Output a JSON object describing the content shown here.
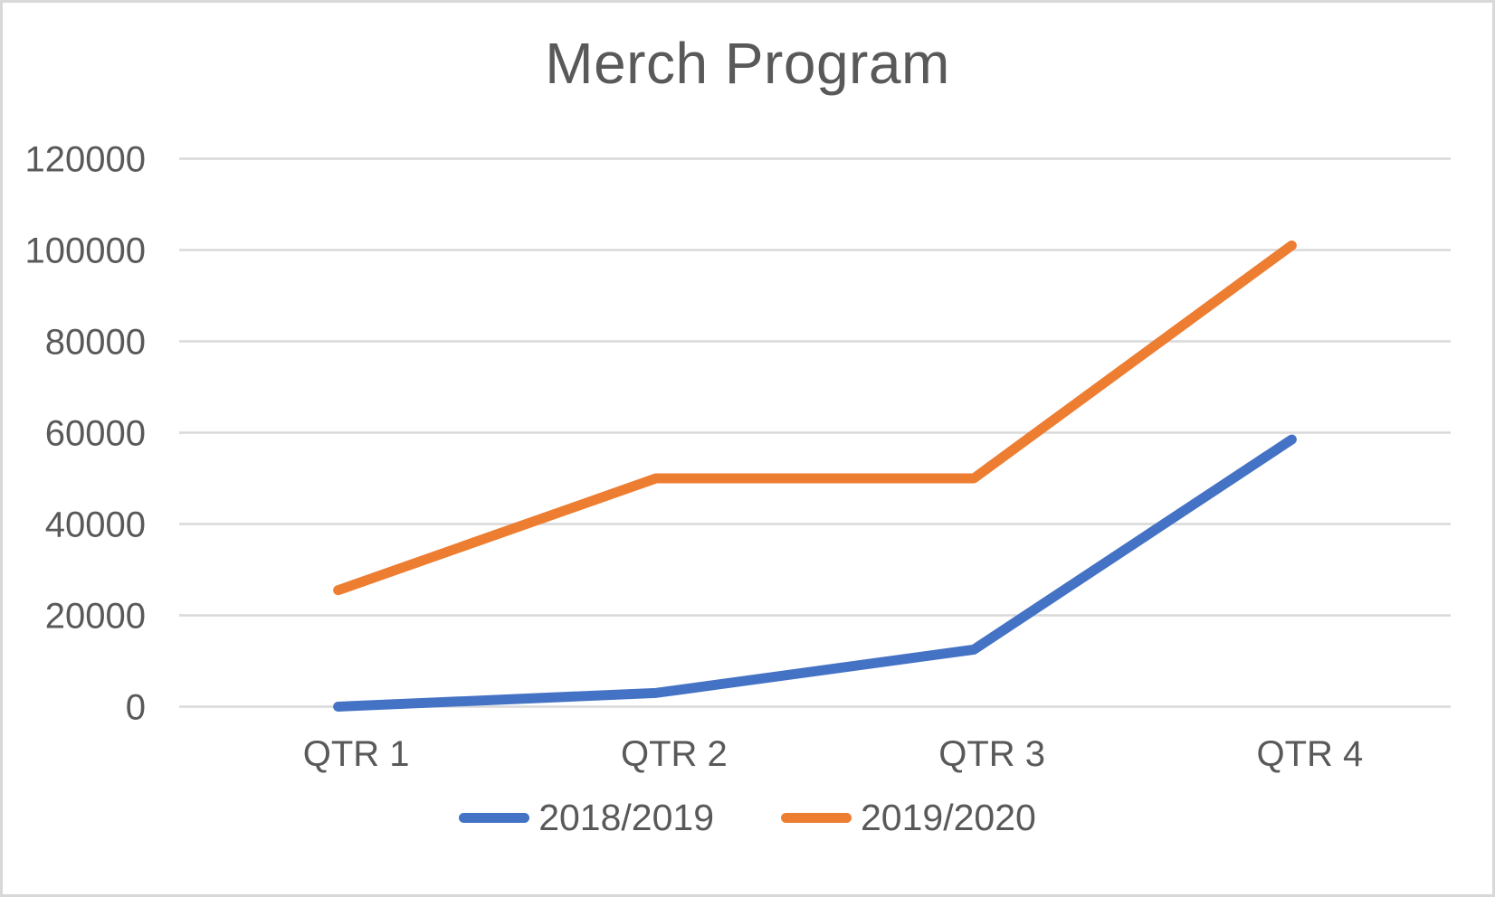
{
  "chart_data": {
    "type": "line",
    "title": "Merch Program",
    "categories": [
      "QTR 1",
      "QTR 2",
      "QTR 3",
      "QTR 4"
    ],
    "series": [
      {
        "name": "2018/2019",
        "color": "#4472C4",
        "values": [
          0,
          3000,
          12500,
          58500
        ]
      },
      {
        "name": "2019/2020",
        "color": "#ED7D31",
        "values": [
          25500,
          50000,
          50000,
          101000
        ]
      }
    ],
    "xlabel": "",
    "ylabel": "",
    "ylim": [
      0,
      120000
    ],
    "ytick_step": 20000,
    "ytick_labels": [
      "0",
      "20000",
      "40000",
      "60000",
      "80000",
      "100000",
      "120000"
    ],
    "grid": "horizontal-only",
    "grid_color": "#d9d9d9",
    "text_color": "#595959",
    "border_color": "#d8d8d8",
    "legend_position": "bottom",
    "line_width": 11
  }
}
